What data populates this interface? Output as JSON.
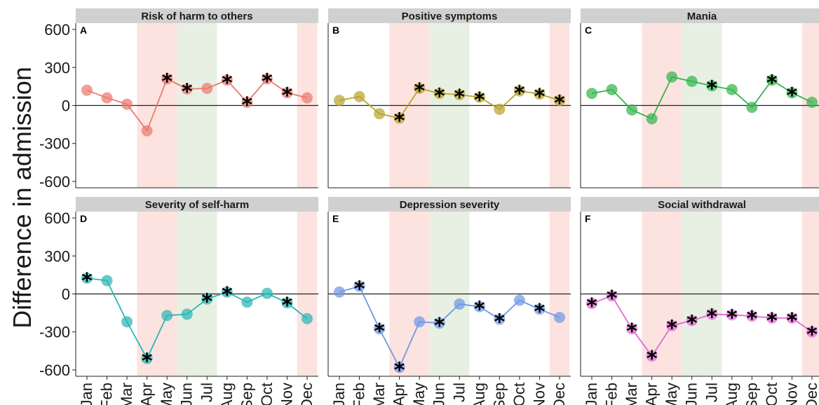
{
  "chart_data": {
    "type": "line",
    "ylabel": "Difference in admission",
    "ylim": [
      -650,
      650
    ],
    "yticks": [
      600,
      300,
      0,
      -300,
      -600
    ],
    "categories": [
      "Jan",
      "Feb",
      "Mar",
      "Apr",
      "May",
      "Jun",
      "Jul",
      "Aug",
      "Sep",
      "Oct",
      "Nov",
      "Dec"
    ],
    "shaded_bands": [
      {
        "from": "Apr",
        "to": "May",
        "color": "#fde3e0"
      },
      {
        "from": "Jun",
        "to": "Jul",
        "color": "#e8f0e4"
      },
      {
        "from": "Dec",
        "to": "Dec",
        "color": "#fde3e0"
      }
    ],
    "grid": false,
    "panels": [
      {
        "tag": "A",
        "title": "Risk of harm to others",
        "color": "#ea7a70",
        "values": [
          120,
          60,
          10,
          -200,
          210,
          130,
          135,
          200,
          25,
          210,
          100,
          60
        ],
        "significant": [
          false,
          false,
          false,
          false,
          true,
          true,
          false,
          true,
          true,
          true,
          true,
          false
        ]
      },
      {
        "tag": "B",
        "title": "Positive symptoms",
        "color": "#b9a42c",
        "values": [
          40,
          70,
          -65,
          -100,
          135,
          95,
          85,
          65,
          -30,
          115,
          90,
          40
        ],
        "significant": [
          false,
          false,
          false,
          true,
          true,
          true,
          true,
          true,
          false,
          true,
          true,
          true
        ]
      },
      {
        "tag": "C",
        "title": "Mania",
        "color": "#34b44c",
        "values": [
          95,
          125,
          -35,
          -105,
          225,
          190,
          155,
          125,
          -15,
          200,
          100,
          25
        ],
        "significant": [
          false,
          false,
          false,
          false,
          false,
          false,
          true,
          false,
          false,
          true,
          true,
          false
        ]
      },
      {
        "tag": "D",
        "title": "Severity of self-harm",
        "color": "#2ab6b4",
        "values": [
          125,
          105,
          -220,
          -510,
          -170,
          -160,
          -40,
          15,
          -65,
          5,
          -70,
          -195
        ],
        "significant": [
          true,
          false,
          false,
          true,
          false,
          false,
          true,
          true,
          false,
          false,
          true,
          false
        ]
      },
      {
        "tag": "E",
        "title": "Depression severity",
        "color": "#6f98e4",
        "values": [
          15,
          60,
          -275,
          -580,
          -220,
          -230,
          -80,
          -100,
          -200,
          -50,
          -120,
          -185
        ],
        "significant": [
          false,
          true,
          true,
          true,
          false,
          true,
          false,
          true,
          true,
          false,
          true,
          false
        ]
      },
      {
        "tag": "F",
        "title": "Social withdrawal",
        "color": "#de6ad6",
        "values": [
          -75,
          -15,
          -275,
          -490,
          -250,
          -210,
          -160,
          -165,
          -175,
          -190,
          -190,
          -300
        ],
        "significant": [
          true,
          true,
          true,
          true,
          true,
          true,
          true,
          true,
          true,
          true,
          true,
          true
        ]
      }
    ]
  }
}
